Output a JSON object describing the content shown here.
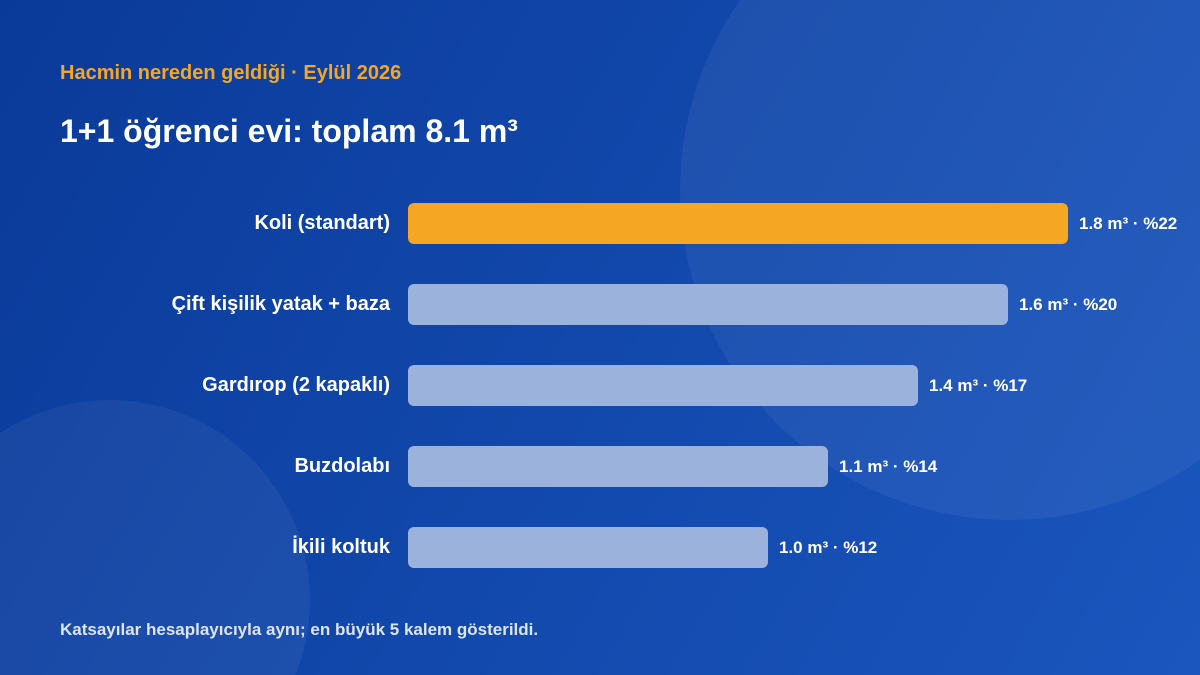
{
  "colors": {
    "background_start": "#0a3a99",
    "background_end": "#1a56be",
    "accent": "#f5a623",
    "bar": "#9bb3dc",
    "text": "#ffffff",
    "muted_text": "#dce5f5"
  },
  "chart_data": {
    "type": "bar",
    "orientation": "horizontal",
    "subtitle": "Hacmin nereden geldiği · Eylül 2026",
    "title": "1+1 öğrenci evi: toplam 8.1 m³",
    "categories": [
      "Koli (standart)",
      "Çift kişilik yatak + baza",
      "Gardırop (2 kapaklı)",
      "Buzdolabı",
      "İkili koltuk"
    ],
    "values": [
      1.8,
      1.6,
      1.4,
      1.1,
      1.0
    ],
    "shares_percent": [
      22,
      20,
      17,
      14,
      12
    ],
    "value_labels": [
      "1.8 m³ · %22",
      "1.6 m³ · %20",
      "1.4 m³ · %17",
      "1.1 m³ · %14",
      "1.0 m³ · %12"
    ],
    "highlight_index": 0,
    "xlabel": "",
    "ylabel": "",
    "grid": false,
    "legend": "none"
  },
  "footer": {
    "note": "Katsayılar hesaplayıcıyla aynı; en büyük 5 kalem gösterildi."
  }
}
